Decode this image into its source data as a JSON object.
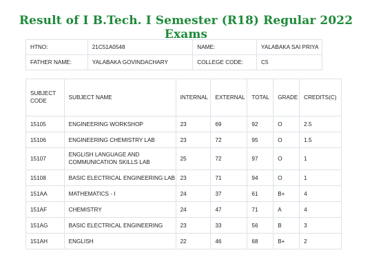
{
  "title": "Result of I B.Tech. I Semester (R18) Regular 2022 Exams",
  "student": {
    "htno_label": "HTNO:",
    "htno": "21C51A0548",
    "name_label": "NAME:",
    "name": "YALABAKA SAI PRIYA",
    "father_label": "FATHER NAME:",
    "father": "YALABAKA GOVINDACHARY",
    "college_label": "COLLEGE CODE:",
    "college": "C5"
  },
  "table": {
    "headers": {
      "code": "SUBJECT CODE",
      "name": "SUBJECT NAME",
      "internal": "INTERNAL",
      "external": "EXTERNAL",
      "total": "TOTAL",
      "grade": "GRADE",
      "credits": "CREDITS(C)"
    },
    "rows": [
      {
        "code": "15105",
        "name": "ENGINEERING WORKSHOP",
        "internal": "23",
        "external": "69",
        "total": "92",
        "grade": "O",
        "credits": "2.5"
      },
      {
        "code": "15106",
        "name": "ENGINEERING CHEMISTRY LAB",
        "internal": "23",
        "external": "72",
        "total": "95",
        "grade": "O",
        "credits": "1.5"
      },
      {
        "code": "15107",
        "name": "ENGLISH LANGUAGE AND COMMUNICATION SKILLS LAB",
        "internal": "25",
        "external": "72",
        "total": "97",
        "grade": "O",
        "credits": "1"
      },
      {
        "code": "15108",
        "name": "BASIC ELECTRICAL ENGINEERING LAB",
        "internal": "23",
        "external": "71",
        "total": "94",
        "grade": "O",
        "credits": "1"
      },
      {
        "code": "151AA",
        "name": "MATHEMATICS - I",
        "internal": "24",
        "external": "37",
        "total": "61",
        "grade": "B+",
        "credits": "4"
      },
      {
        "code": "151AF",
        "name": "CHEMISTRY",
        "internal": "24",
        "external": "47",
        "total": "71",
        "grade": "A",
        "credits": "4"
      },
      {
        "code": "151AG",
        "name": "BASIC ELECTRICAL ENGINEERING",
        "internal": "23",
        "external": "33",
        "total": "56",
        "grade": "B",
        "credits": "3"
      },
      {
        "code": "151AH",
        "name": "ENGLISH",
        "internal": "22",
        "external": "46",
        "total": "68",
        "grade": "B+",
        "credits": "2"
      }
    ]
  }
}
